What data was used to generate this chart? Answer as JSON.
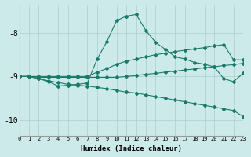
{
  "xlabel": "Humidex (Indice chaleur)",
  "bg_color": "#cdeaea",
  "line_color": "#1a7a6a",
  "grid_color": "#aacece",
  "xlim": [
    0,
    23
  ],
  "ylim": [
    -10.35,
    -7.35
  ],
  "yticks": [
    -10,
    -9,
    -8
  ],
  "xticks": [
    0,
    1,
    2,
    3,
    4,
    5,
    6,
    7,
    8,
    9,
    10,
    11,
    12,
    13,
    14,
    15,
    16,
    17,
    18,
    19,
    20,
    21,
    22,
    23
  ],
  "s1_x": [
    0,
    1,
    2,
    3,
    4,
    5,
    6,
    7,
    8,
    9,
    10,
    11,
    12,
    13,
    14,
    15,
    16,
    17,
    18,
    19,
    20,
    21,
    22,
    23
  ],
  "s1_y": [
    -9.0,
    -9.0,
    -9.05,
    -9.12,
    -9.22,
    -9.2,
    -9.18,
    -9.15,
    -8.6,
    -8.2,
    -7.72,
    -7.62,
    -7.58,
    -7.95,
    -8.22,
    -8.38,
    -8.55,
    -8.6,
    -8.68,
    -8.72,
    -8.78,
    -9.05,
    -9.12,
    -8.92
  ],
  "s2_x": [
    0,
    1,
    2,
    3,
    4,
    5,
    6,
    7,
    8,
    9,
    10,
    11,
    12,
    13,
    14,
    15,
    16,
    17,
    18,
    19,
    20,
    21,
    22,
    23
  ],
  "s2_y": [
    -9.0,
    -9.0,
    -9.0,
    -9.0,
    -9.0,
    -9.0,
    -9.0,
    -9.0,
    -8.9,
    -8.82,
    -8.72,
    -8.65,
    -8.6,
    -8.55,
    -8.5,
    -8.47,
    -8.43,
    -8.4,
    -8.37,
    -8.34,
    -8.3,
    -8.27,
    -8.62,
    -8.62
  ],
  "s3_x": [
    0,
    1,
    2,
    3,
    4,
    5,
    6,
    7,
    8,
    9,
    10,
    11,
    12,
    13,
    14,
    15,
    16,
    17,
    18,
    19,
    20,
    21,
    22,
    23
  ],
  "s3_y": [
    -9.0,
    -9.0,
    -9.02,
    -9.02,
    -9.02,
    -9.02,
    -9.02,
    -9.02,
    -9.02,
    -9.02,
    -9.02,
    -9.0,
    -8.98,
    -8.95,
    -8.93,
    -8.9,
    -8.88,
    -8.85,
    -8.83,
    -8.8,
    -8.78,
    -8.75,
    -8.73,
    -8.7
  ],
  "s4_x": [
    0,
    1,
    2,
    3,
    4,
    5,
    6,
    7,
    8,
    9,
    10,
    11,
    12,
    13,
    14,
    15,
    16,
    17,
    18,
    19,
    20,
    21,
    22,
    23
  ],
  "s4_y": [
    -9.0,
    -9.0,
    -9.05,
    -9.1,
    -9.14,
    -9.18,
    -9.2,
    -9.22,
    -9.25,
    -9.28,
    -9.32,
    -9.36,
    -9.38,
    -9.42,
    -9.46,
    -9.5,
    -9.54,
    -9.58,
    -9.62,
    -9.66,
    -9.7,
    -9.74,
    -9.78,
    -9.92
  ]
}
